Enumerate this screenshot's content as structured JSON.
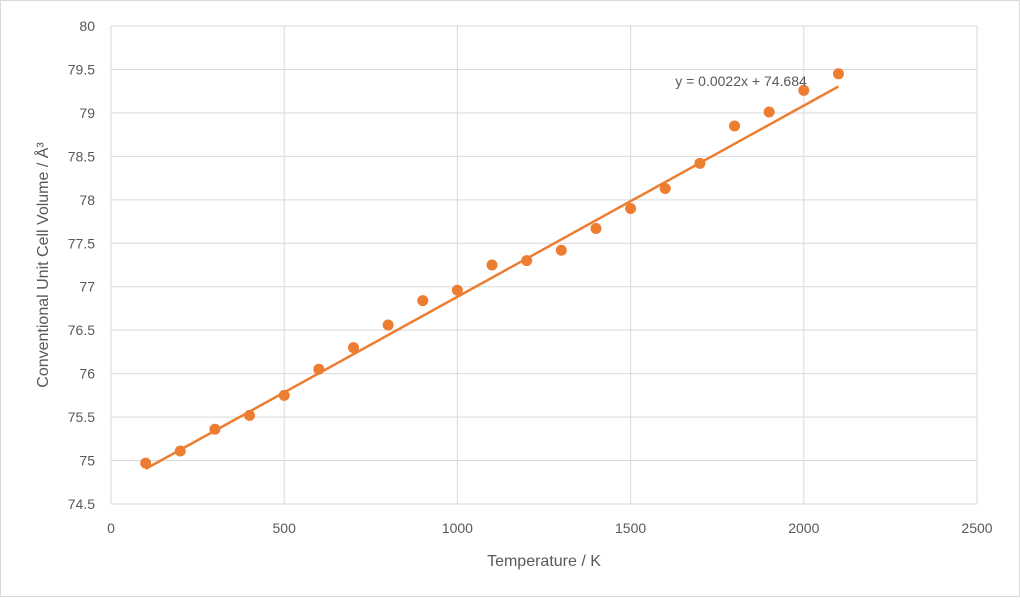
{
  "chart_data": {
    "type": "scatter",
    "title": "",
    "xlabel": "Temperature / K",
    "ylabel": "Conventional Unit Cell Volume / Å³",
    "xlim": [
      0,
      2500
    ],
    "ylim": [
      74.5,
      80
    ],
    "x_ticks": [
      "0",
      "500",
      "1000",
      "1500",
      "2000",
      "2500"
    ],
    "y_ticks": [
      "74.5",
      "75",
      "75.5",
      "76",
      "76.5",
      "77",
      "77.5",
      "78",
      "78.5",
      "79",
      "79.5",
      "80"
    ],
    "grid": true,
    "legend": "none",
    "marker_color": "#ED7D31",
    "trendline_color": "#ED7D31",
    "x": [
      100,
      200,
      300,
      400,
      500,
      600,
      700,
      800,
      900,
      1000,
      1100,
      1200,
      1300,
      1400,
      1500,
      1600,
      1700,
      1800,
      1900,
      2000,
      2100
    ],
    "y": [
      74.97,
      75.11,
      75.36,
      75.52,
      75.75,
      76.05,
      76.3,
      76.56,
      76.84,
      76.96,
      77.25,
      77.3,
      77.42,
      77.67,
      77.9,
      78.13,
      78.42,
      78.85,
      79.01,
      79.26,
      79.45
    ],
    "trendline": {
      "slope": 0.0022,
      "intercept": 74.684,
      "x_range": [
        100,
        2100
      ],
      "equation": "y = 0.0022x + 74.684"
    }
  }
}
